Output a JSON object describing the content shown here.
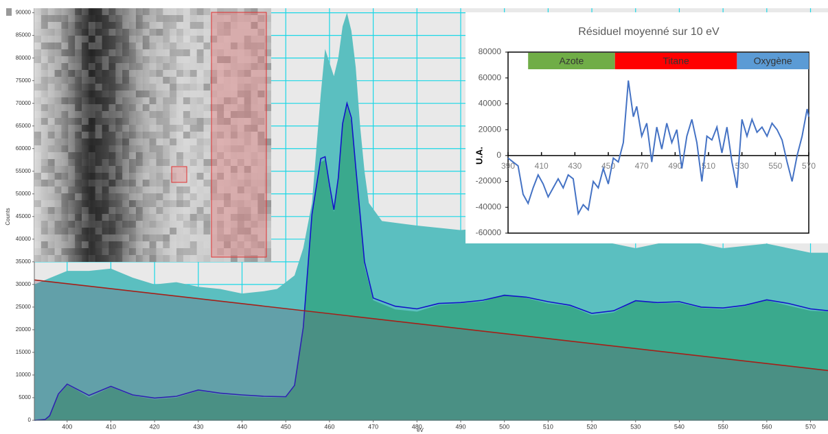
{
  "chart_data": [
    {
      "type": "area",
      "xlabel": "eV",
      "ylabel": "Counts",
      "xlim": [
        392.5,
        574
      ],
      "ylim": [
        0,
        91000
      ],
      "xticks": [
        400,
        410,
        420,
        430,
        440,
        450,
        460,
        470,
        480,
        490,
        500,
        510,
        520,
        530,
        540,
        550,
        560,
        570
      ],
      "yticks": [
        0,
        5000,
        10000,
        15000,
        20000,
        25000,
        30000,
        35000,
        40000,
        45000,
        50000,
        55000,
        60000,
        65000,
        70000,
        75000,
        80000,
        85000,
        90000
      ],
      "grid": true,
      "series": [
        {
          "style": "area",
          "color": "#5bbfc0",
          "x": [
            392.5,
            395,
            400,
            405,
            410,
            415,
            420,
            425,
            430,
            435,
            440,
            445,
            448,
            452,
            454,
            456,
            457,
            458,
            459,
            460,
            461,
            462,
            463,
            464,
            465,
            466,
            467,
            468,
            469,
            472,
            476,
            480,
            490,
            500,
            510,
            520,
            530,
            540,
            550,
            560,
            570,
            574
          ],
          "values": [
            30000,
            31000,
            33000,
            33000,
            33500,
            31500,
            30000,
            30500,
            29500,
            29000,
            28000,
            28500,
            29000,
            32000,
            38000,
            48000,
            60000,
            72000,
            82000,
            79000,
            76000,
            80000,
            87000,
            90000,
            86000,
            78000,
            65000,
            55000,
            48000,
            44000,
            43500,
            43000,
            42000,
            43000,
            42000,
            40000,
            38000,
            40000,
            38000,
            39000,
            37000,
            37000
          ]
        },
        {
          "style": "area",
          "color": "#3aa98d",
          "x": [
            392.5,
            395,
            396,
            398,
            400,
            402,
            405,
            410,
            415,
            420,
            425,
            430,
            435,
            440,
            445,
            450,
            452,
            454,
            456,
            458,
            459,
            460,
            461,
            462,
            463,
            464,
            465,
            466,
            468,
            470,
            475,
            480,
            485,
            490,
            495,
            500,
            505,
            510,
            515,
            520,
            525,
            530,
            535,
            540,
            545,
            550,
            555,
            560,
            565,
            570,
            574
          ],
          "values": [
            0,
            300,
            1200,
            5500,
            7800,
            6800,
            5000,
            7300,
            5400,
            4600,
            5000,
            6500,
            5700,
            5300,
            5000,
            5000,
            7500,
            20000,
            45000,
            57000,
            57500,
            51000,
            46000,
            53000,
            65000,
            69500,
            66000,
            55000,
            34000,
            26500,
            24500,
            24000,
            25500,
            25800,
            26200,
            27800,
            27000,
            25800,
            25200,
            23200,
            23800,
            26500,
            25800,
            25900,
            24800,
            24500,
            25200,
            26500,
            25300,
            24200,
            24000
          ]
        },
        {
          "style": "line",
          "color": "#1212c8",
          "x": [
            392.5,
            395,
            396,
            398,
            400,
            402,
            405,
            410,
            415,
            420,
            425,
            430,
            435,
            440,
            445,
            450,
            452,
            454,
            456,
            458,
            459,
            460,
            461,
            462,
            463,
            464,
            465,
            466,
            468,
            470,
            475,
            480,
            485,
            490,
            495,
            500,
            505,
            510,
            515,
            520,
            525,
            530,
            535,
            540,
            545,
            550,
            555,
            560,
            565,
            570,
            574
          ],
          "values": [
            0,
            200,
            1000,
            5800,
            8000,
            7000,
            5500,
            7500,
            5600,
            4900,
            5300,
            6700,
            6000,
            5600,
            5300,
            5200,
            7700,
            20500,
            45500,
            57800,
            58200,
            52000,
            46500,
            53500,
            65500,
            70000,
            66800,
            56000,
            35000,
            27000,
            25200,
            24600,
            25800,
            26000,
            26500,
            27600,
            27200,
            26200,
            25400,
            23600,
            24200,
            26400,
            26000,
            26200,
            25000,
            24800,
            25400,
            26600,
            25800,
            24600,
            24200
          ]
        },
        {
          "style": "line",
          "color": "#a51e17",
          "x": [
            392.5,
            574
          ],
          "values": [
            31000,
            11000
          ]
        }
      ]
    },
    {
      "type": "line",
      "title": "Résiduel moyenné sur 10 eV",
      "ylabel": "U.A.",
      "xlim": [
        390,
        570
      ],
      "ylim": [
        -60000,
        80000
      ],
      "xticks": [
        390,
        410,
        430,
        450,
        470,
        490,
        510,
        530,
        550,
        570
      ],
      "yticks": [
        -60000,
        -40000,
        -20000,
        0,
        20000,
        40000,
        60000,
        80000
      ],
      "bands": [
        {
          "label": "Azote",
          "color": "#70ad47",
          "start": 402,
          "end": 454
        },
        {
          "label": "Titane",
          "color": "#ff0000",
          "start": 454,
          "end": 527
        },
        {
          "label": "Oxygène",
          "color": "#5b9bd5",
          "start": 527,
          "end": 570
        }
      ],
      "series": [
        {
          "color": "#4472c4",
          "x": [
            390,
            393,
            396,
            399,
            402,
            405,
            408,
            411,
            414,
            417,
            420,
            423,
            426,
            429,
            432,
            435,
            438,
            441,
            444,
            447,
            450,
            453,
            456,
            459,
            462,
            465,
            467,
            470,
            473,
            476,
            479,
            482,
            485,
            488,
            491,
            494,
            497,
            500,
            503,
            506,
            509,
            512,
            515,
            518,
            521,
            524,
            527,
            530,
            533,
            536,
            539,
            542,
            545,
            548,
            551,
            554,
            557,
            560,
            563,
            566,
            569,
            570
          ],
          "values": [
            -2000,
            -5000,
            -8000,
            -30000,
            -37000,
            -25000,
            -15000,
            -22000,
            -32000,
            -25000,
            -18000,
            -25000,
            -15000,
            -18000,
            -45000,
            -38000,
            -42000,
            -20000,
            -25000,
            -10000,
            -22000,
            -2000,
            -5000,
            10000,
            58000,
            30000,
            38000,
            15000,
            25000,
            -5000,
            22000,
            5000,
            25000,
            10000,
            20000,
            -10000,
            15000,
            28000,
            10000,
            -20000,
            15000,
            12000,
            22000,
            2000,
            22000,
            -5000,
            -25000,
            28000,
            15000,
            28000,
            18000,
            22000,
            15000,
            25000,
            20000,
            12000,
            -5000,
            -20000,
            0,
            15000,
            36000,
            30000
          ]
        }
      ]
    }
  ]
}
